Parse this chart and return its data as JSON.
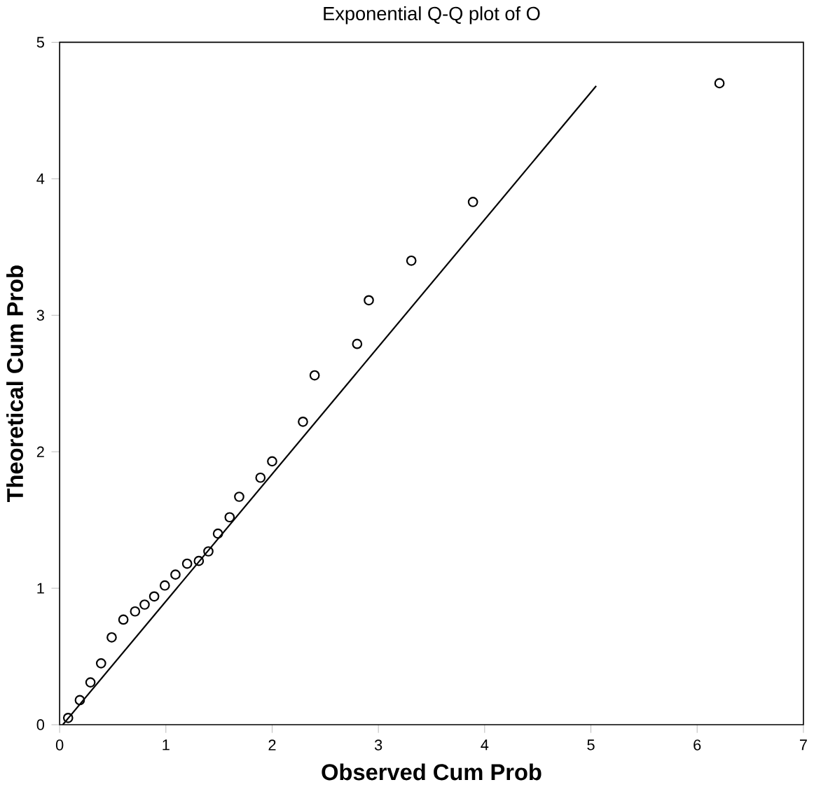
{
  "chart_data": {
    "type": "scatter",
    "title": "Exponential Q-Q plot of O",
    "xlabel": "Observed Cum Prob",
    "ylabel": "Theoretical Cum Prob",
    "xlim": [
      0,
      7
    ],
    "ylim": [
      0,
      5
    ],
    "xticks": [
      0,
      1,
      2,
      3,
      4,
      5,
      6,
      7
    ],
    "yticks": [
      0,
      1,
      2,
      3,
      4,
      5
    ],
    "grid": false,
    "series": [
      {
        "color": "#000000",
        "marker": "circle",
        "x": [
          0.08,
          0.19,
          0.29,
          0.39,
          0.49,
          0.6,
          0.71,
          0.8,
          0.89,
          0.99,
          1.09,
          1.2,
          1.31,
          1.4,
          1.49,
          1.6,
          1.69,
          1.89,
          2.0,
          2.29,
          2.4,
          2.8,
          2.91,
          3.31,
          3.89,
          6.21
        ],
        "values": [
          0.05,
          0.18,
          0.31,
          0.45,
          0.64,
          0.77,
          0.83,
          0.88,
          0.94,
          1.02,
          1.1,
          1.18,
          1.2,
          1.27,
          1.4,
          1.52,
          1.67,
          1.81,
          1.93,
          2.22,
          2.56,
          2.79,
          3.11,
          3.4,
          3.83,
          4.7
        ]
      },
      {
        "type": "line",
        "color": "#000000",
        "marker": "none",
        "x": [
          0.03,
          5.05
        ],
        "values": [
          0,
          4.68
        ]
      }
    ]
  }
}
